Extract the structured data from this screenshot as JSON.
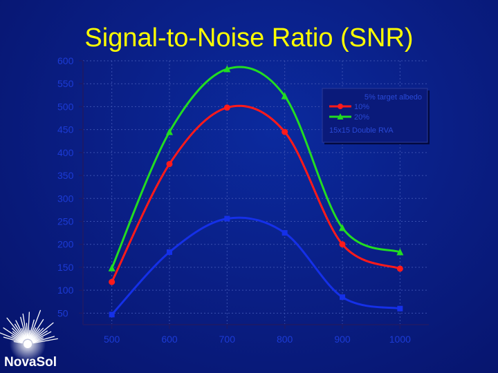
{
  "slide": {
    "title": "Signal-to-Noise Ratio (SNR)",
    "logo": "NovaSol"
  },
  "colors": {
    "background": "#0a1f86",
    "title": "#ffff00",
    "tick_text": "#1c3bd6",
    "grid": "#3a50b0",
    "axis": "#1a1a6a",
    "legend_bg": "#0a1a7a"
  },
  "icons": {
    "logo": "starburst-icon"
  },
  "chart_data": {
    "type": "line",
    "x": [
      500,
      600,
      700,
      800,
      900,
      1000
    ],
    "xlim": [
      450,
      1050
    ],
    "ylim": [
      25,
      600
    ],
    "xticks": [
      "500",
      "600",
      "700",
      "800",
      "900",
      "1000"
    ],
    "yticks": [
      "50",
      "100",
      "150",
      "200",
      "250",
      "300",
      "350",
      "400",
      "450",
      "500",
      "550",
      "600"
    ],
    "grid": true,
    "legend_position": "top-right",
    "legend_title": "5% target albedo",
    "legend_note": "15x15 Double RVA",
    "series": [
      {
        "name": "10%",
        "color": "#ff1a1a",
        "marker": "circle",
        "values": [
          118,
          375,
          498,
          445,
          200,
          147
        ]
      },
      {
        "name": "20%",
        "color": "#22dd22",
        "marker": "triangle",
        "values": [
          148,
          445,
          582,
          523,
          236,
          183
        ]
      },
      {
        "name": "",
        "color": "#1530e8",
        "marker": "square",
        "values": [
          47,
          183,
          256,
          225,
          85,
          60
        ]
      }
    ]
  }
}
